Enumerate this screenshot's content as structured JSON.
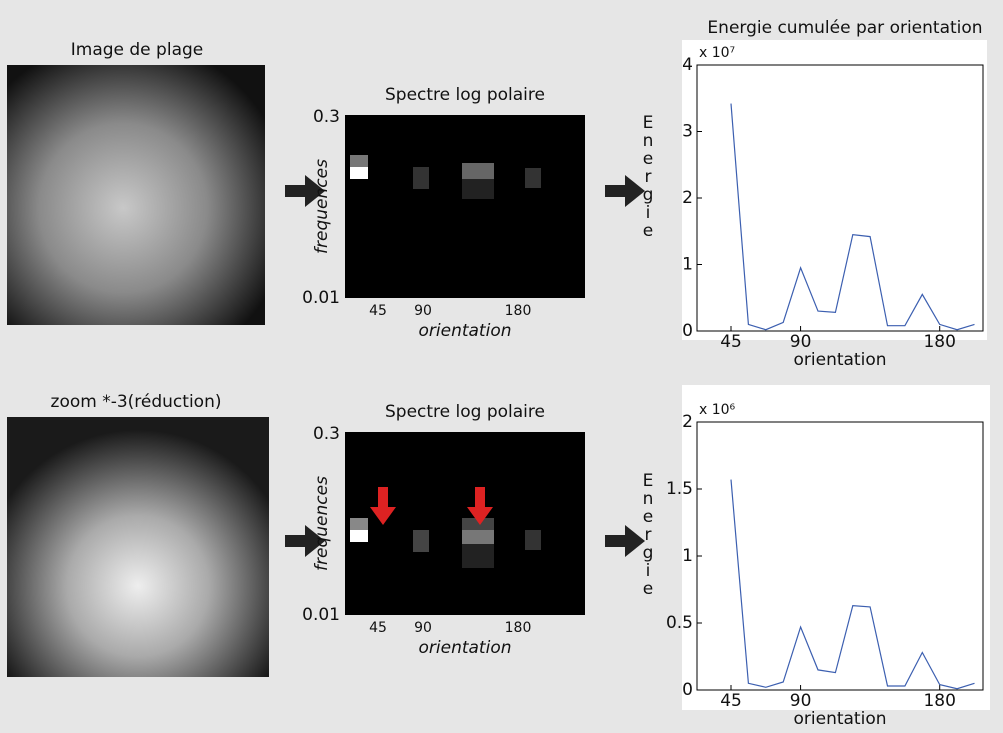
{
  "panels": [
    {
      "image_label": "Image de plage",
      "spectrum": {
        "title": "Spectre log polaire",
        "y_top": "0.3",
        "y_bottom": "0.01",
        "y_label": "frequences",
        "x_label": "orientation",
        "x_ticks": [
          "45",
          "90",
          "180"
        ]
      }
    },
    {
      "image_label": "zoom *-3(réduction)",
      "spectrum": {
        "title": "Spectre log polaire",
        "y_top": "0.3",
        "y_bottom": "0.01",
        "y_label": "frequences",
        "x_label": "orientation",
        "x_ticks": [
          "45",
          "90",
          "180"
        ]
      }
    }
  ],
  "chart_data": [
    {
      "type": "line",
      "title": "Energie cumulée par orientation",
      "multiplier": "x 10⁷",
      "xlabel": "orientation",
      "ylabel": "Energie",
      "color": "#3c5fb0",
      "x": [
        45,
        56.25,
        67.5,
        78.75,
        90,
        101.25,
        112.5,
        123.75,
        135,
        146.25,
        157.5,
        168.75,
        180,
        191.25,
        202.5
      ],
      "values": [
        3.42,
        0.1,
        0.02,
        0.13,
        0.95,
        0.3,
        0.28,
        1.45,
        1.42,
        0.08,
        0.08,
        0.55,
        0.1,
        0.02,
        0.1
      ],
      "xlim": [
        23,
        208
      ],
      "xticks": [
        45,
        90,
        180
      ],
      "ylim": [
        0,
        4
      ],
      "yticks": [
        0,
        1,
        2,
        3,
        4
      ]
    },
    {
      "type": "line",
      "multiplier": "x 10⁶",
      "xlabel": "orientation",
      "ylabel": "Energie",
      "color": "#3c5fb0",
      "x": [
        45,
        56.25,
        67.5,
        78.75,
        90,
        101.25,
        112.5,
        123.75,
        135,
        146.25,
        157.5,
        168.75,
        180,
        191.25,
        202.5
      ],
      "values": [
        1.57,
        0.05,
        0.02,
        0.06,
        0.47,
        0.15,
        0.13,
        0.63,
        0.62,
        0.03,
        0.03,
        0.28,
        0.04,
        0.01,
        0.05
      ],
      "xlim": [
        23,
        208
      ],
      "xticks": [
        45,
        90,
        180
      ],
      "ylim": [
        0,
        2
      ],
      "yticks": [
        0,
        0.5,
        1,
        1.5,
        2
      ]
    }
  ]
}
